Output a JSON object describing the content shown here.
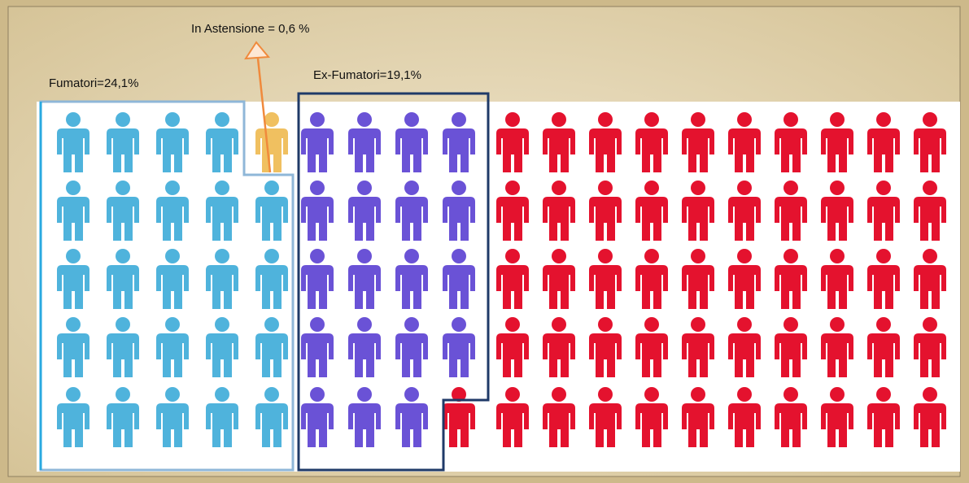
{
  "labels": {
    "astensione": "In Astensione = 0,6 %",
    "fumatori": "Fumatori=24,1%",
    "ex_fumatori": "Ex-Fumatori=19,1%"
  }
}
